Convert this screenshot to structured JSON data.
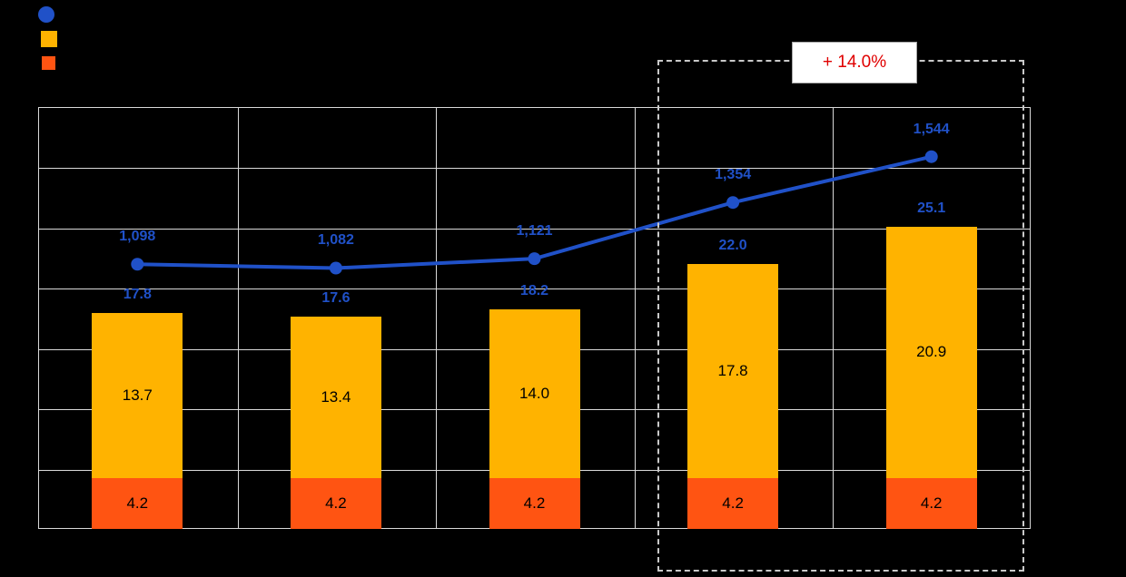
{
  "legend": {
    "items": [
      {
        "name": "line-series-swatch",
        "shape": "circle",
        "color": "#2051C8",
        "label": ""
      },
      {
        "name": "bar-top-series-swatch",
        "shape": "square",
        "color": "#FFB300",
        "label": ""
      },
      {
        "name": "bar-bottom-series-swatch",
        "shape": "square",
        "color": "#FF5412",
        "label": ""
      }
    ]
  },
  "annotation": {
    "text": "+ 14.0%",
    "color": "#E00000"
  },
  "chart_data": {
    "type": "combo",
    "categories": [
      "",
      "",
      "",
      "",
      ""
    ],
    "series": [
      {
        "name": "line",
        "type": "line",
        "color": "#2051C8",
        "axis": "secondary",
        "values": [
          1098,
          1082,
          1121,
          1354,
          1544
        ],
        "labels": [
          "1,098",
          "1,082",
          "1,121",
          "1,354",
          "1,544"
        ]
      },
      {
        "name": "bar-top",
        "type": "bar",
        "color": "#FFB300",
        "values": [
          13.7,
          13.4,
          14.0,
          17.8,
          20.9
        ],
        "labels": [
          "13.7",
          "13.4",
          "14.0",
          "17.8",
          "20.9"
        ]
      },
      {
        "name": "bar-bottom",
        "type": "bar",
        "color": "#FF5412",
        "values": [
          4.2,
          4.2,
          4.2,
          4.2,
          4.2
        ],
        "labels": [
          "4.2",
          "4.2",
          "4.2",
          "4.2",
          "4.2"
        ]
      }
    ],
    "bar_totals": [
      17.8,
      17.6,
      18.2,
      22.0,
      25.1
    ],
    "bar_total_labels": [
      "17.8",
      "17.6",
      "18.2",
      "22.0",
      "25.1"
    ],
    "primary_axis": {
      "min": 0,
      "max": 35
    },
    "secondary_axis": {
      "min": 0,
      "max": 1750
    },
    "grid": {
      "rows": 7,
      "cols": 5,
      "color": "#D9D9D9"
    },
    "highlight": {
      "last_n_categories": 2,
      "annotation": "+ 14.0%"
    },
    "label_color": "#2051C8"
  }
}
